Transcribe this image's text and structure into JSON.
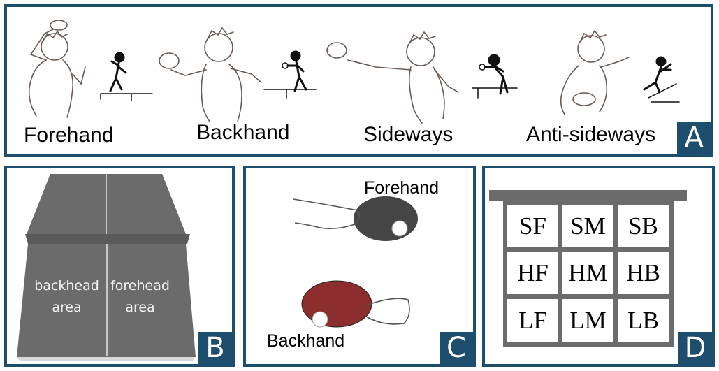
{
  "panel_a": {
    "badge": "A",
    "strokes": [
      {
        "label": "Forehand"
      },
      {
        "label": "Backhand"
      },
      {
        "label": "Sideways"
      },
      {
        "label": "Anti-sideways"
      }
    ]
  },
  "panel_b": {
    "badge": "B",
    "left_area": {
      "line1": "backhead",
      "line2": "area"
    },
    "right_area": {
      "line1": "forehead",
      "line2": "area"
    }
  },
  "panel_c": {
    "badge": "C",
    "top_label": "Forehand",
    "bottom_label": "Backhand",
    "colors": {
      "forehand_rubber": "#454545",
      "backhand_rubber": "#8c2e2e"
    }
  },
  "panel_d": {
    "badge": "D",
    "grid": [
      [
        "SF",
        "SM",
        "SB"
      ],
      [
        "HF",
        "HM",
        "HB"
      ],
      [
        "LF",
        "LM",
        "LB"
      ]
    ]
  },
  "colors": {
    "frame": "#1d4e6e",
    "table": "#6b6b6b"
  }
}
